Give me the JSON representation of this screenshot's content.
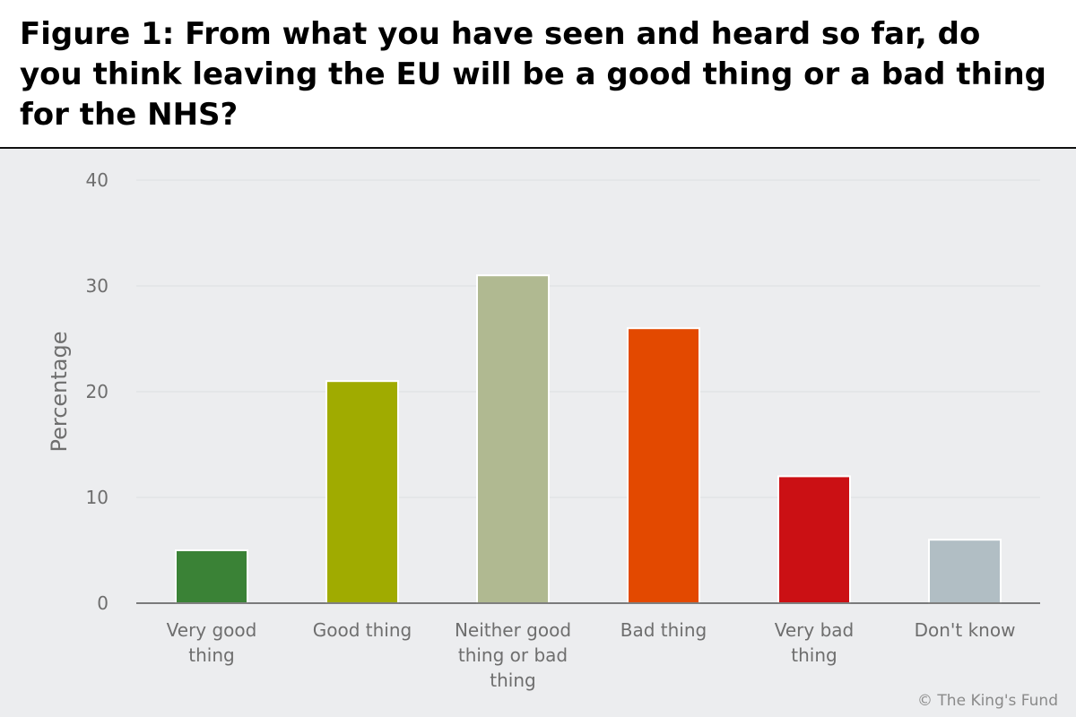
{
  "chart_data": {
    "type": "bar",
    "title": "Figure 1: From what you have seen and heard so far, do you think leaving the EU will be a good thing or a bad thing for the NHS?",
    "categories": [
      "Very good thing",
      "Good thing",
      "Neither good thing or bad thing",
      "Bad thing",
      "Very bad thing",
      "Don't know"
    ],
    "category_lines": [
      [
        "Very good",
        "thing"
      ],
      [
        "Good thing"
      ],
      [
        "Neither good",
        "thing or bad",
        "thing"
      ],
      [
        "Bad thing"
      ],
      [
        "Very bad",
        "thing"
      ],
      [
        "Don't know"
      ]
    ],
    "values": [
      5,
      21,
      31,
      26,
      12,
      6
    ],
    "colors": [
      "#3a8236",
      "#a0ab00",
      "#b0b991",
      "#e34900",
      "#cb1014",
      "#b1bec4"
    ],
    "xlabel": "",
    "ylabel": "Percentage",
    "ylim": [
      0,
      40
    ],
    "yticks": [
      0,
      10,
      20,
      30,
      40
    ],
    "grid": true,
    "legend": "none"
  },
  "credit": "© The King's Fund"
}
